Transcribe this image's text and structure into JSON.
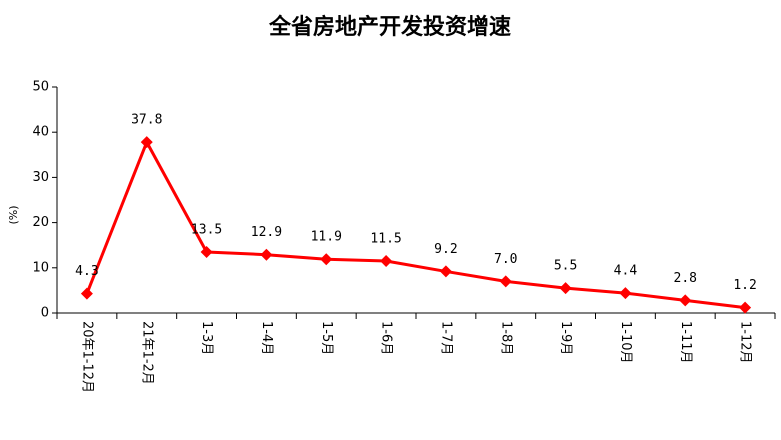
{
  "chart_data": {
    "type": "line",
    "title": "全省房地产开发投资增速",
    "y_label": "(%)",
    "categories": [
      "20年1-12月",
      "21年1-2月",
      "1-3月",
      "1-4月",
      "1-5月",
      "1-6月",
      "1-7月",
      "1-8月",
      "1-9月",
      "1-10月",
      "1-11月",
      "1-12月"
    ],
    "series": [
      {
        "name": "增速",
        "color": "#ff0000",
        "values": [
          4.3,
          37.8,
          13.5,
          12.9,
          11.9,
          11.5,
          9.2,
          7.0,
          5.5,
          4.4,
          2.8,
          1.2
        ],
        "value_labels": [
          "4.3",
          "37.8",
          "13.5",
          "12.9",
          "11.9",
          "11.5",
          "9.2",
          "7.0",
          "5.5",
          "4.4",
          "2.8",
          "1.2"
        ]
      }
    ],
    "ylim": [
      0,
      50
    ],
    "yticks": [
      0,
      10,
      20,
      30,
      40,
      50
    ],
    "grid": false
  }
}
